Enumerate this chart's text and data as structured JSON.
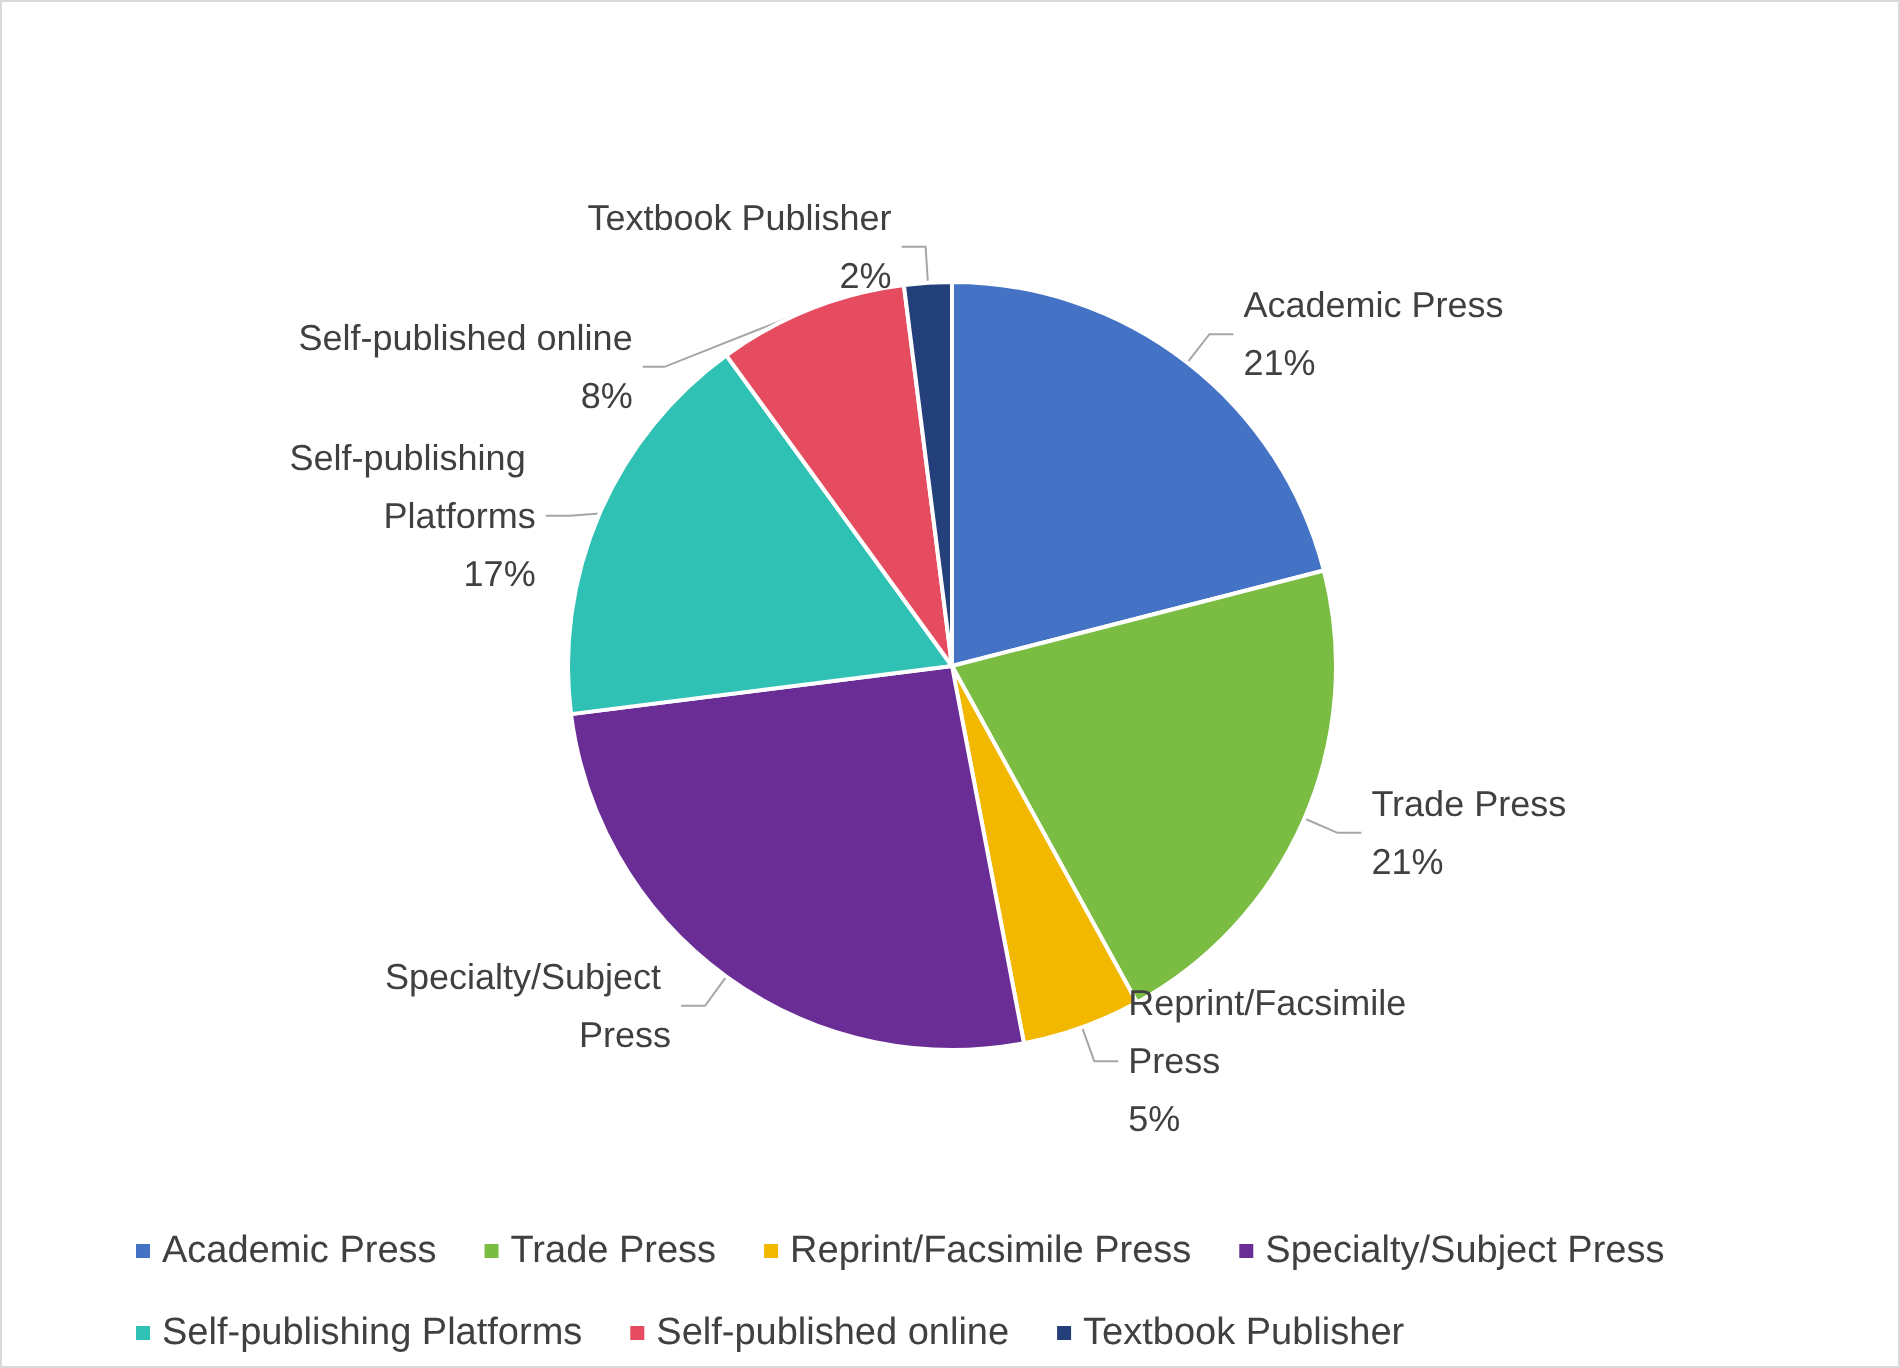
{
  "chart_data": {
    "type": "pie",
    "categories": [
      "Academic Press",
      "Trade Press",
      "Reprint/Facsimile Press",
      "Specialty/Subject Press",
      "Self-publishing Platforms",
      "Self-published online",
      "Textbook Publisher"
    ],
    "values": [
      21,
      21,
      5,
      26,
      17,
      8,
      2
    ],
    "value_labels": [
      "21%",
      "21%",
      "5%",
      null,
      "17%",
      "8%",
      "2%"
    ],
    "colors": [
      "#4472c4",
      "#7bbd42",
      "#f2b800",
      "#6a2d96",
      "#30c1b5",
      "#e64c5f",
      "#24407a"
    ],
    "legend": "bottom"
  }
}
